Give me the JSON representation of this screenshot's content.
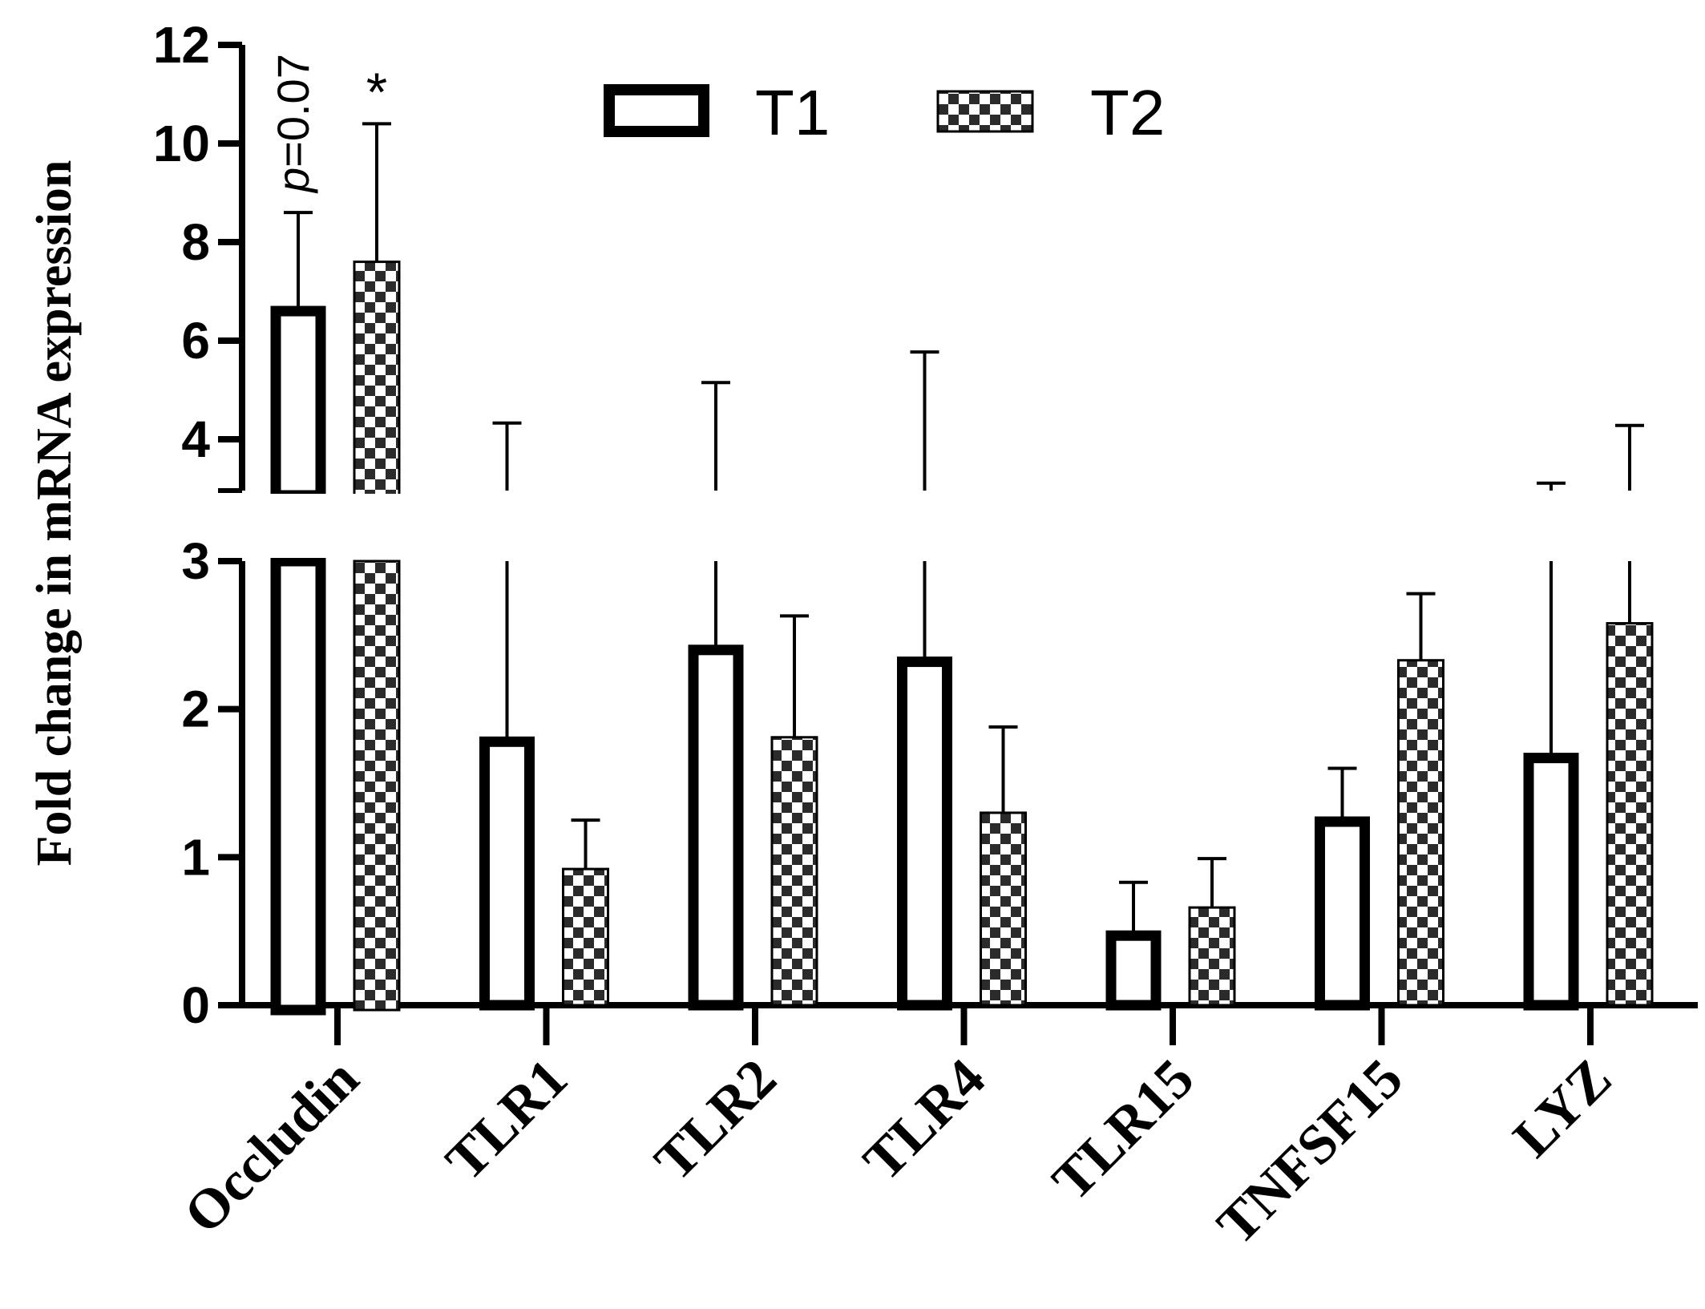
{
  "chart_data": {
    "type": "bar",
    "ylabel": "Fold change in mRNA expression",
    "categories": [
      "Occludin",
      "TLR1",
      "TLR2",
      "TLR4",
      "TLR15",
      "TNFSF15",
      "LYZ"
    ],
    "series": [
      {
        "name": "T1",
        "pattern": "open",
        "values": [
          6.6,
          1.78,
          2.4,
          2.32,
          0.47,
          1.24,
          1.67
        ],
        "errors": [
          2.0,
          2.55,
          2.75,
          3.45,
          0.36,
          0.36,
          1.44
        ]
      },
      {
        "name": "T2",
        "pattern": "checker",
        "values": [
          7.6,
          0.92,
          1.81,
          1.3,
          0.66,
          2.33,
          2.58
        ],
        "errors": [
          2.8,
          0.33,
          0.82,
          0.58,
          0.33,
          0.45,
          1.7
        ]
      }
    ],
    "y_axis": {
      "break": true,
      "lower_range": [
        0,
        3
      ],
      "upper_range": [
        3,
        12
      ],
      "lower_ticks": [
        "0",
        "1",
        "2",
        "3"
      ],
      "upper_ticks": [
        "4",
        "6",
        "8",
        "10",
        "12"
      ]
    },
    "annotations": [
      {
        "category": "Occludin",
        "series": "T1",
        "text": "p=0.07",
        "italic_prefix": "p",
        "rest": "=0.07"
      },
      {
        "category": "Occludin",
        "series": "T2",
        "text": "*"
      }
    ],
    "legend": {
      "position": "top",
      "entries": [
        "T1",
        "T2"
      ]
    },
    "grid": false,
    "colors": {
      "stroke": "#000000",
      "checker_dark": "#2b2b2b",
      "fill": "#ffffff"
    }
  }
}
